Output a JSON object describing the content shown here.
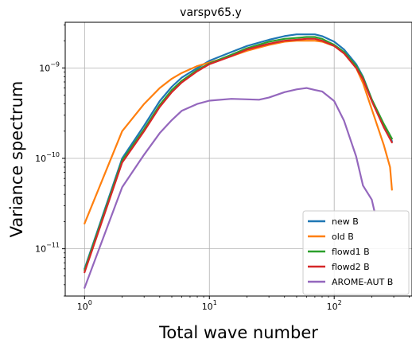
{
  "chart_data": {
    "type": "line",
    "title": "varspv65.y",
    "xlabel": "Total wave number",
    "ylabel": "Variance spectrum",
    "xscale": "log",
    "yscale": "log",
    "xlim": [
      0.7,
      420
    ],
    "ylim": [
      3e-12,
      3.2e-09
    ],
    "grid": true,
    "legend_position": "lower-right",
    "x_ticks": [
      {
        "base": "10",
        "exp": "0",
        "value": 1
      },
      {
        "base": "10",
        "exp": "1",
        "value": 10
      },
      {
        "base": "10",
        "exp": "2",
        "value": 100
      }
    ],
    "y_ticks": [
      {
        "base": "10",
        "exp": "−11",
        "value": 1e-11
      },
      {
        "base": "10",
        "exp": "−10",
        "value": 1e-10
      },
      {
        "base": "10",
        "exp": "−9",
        "value": 1e-09
      }
    ],
    "series": [
      {
        "name": "new B",
        "color": "#1f77b4",
        "x": [
          1,
          2,
          3,
          4,
          5,
          6,
          8,
          10,
          15,
          20,
          30,
          40,
          50,
          60,
          70,
          80,
          100,
          120,
          150,
          170,
          200,
          250,
          290
        ],
        "y": [
          6e-12,
          1e-10,
          2.3e-10,
          4.3e-10,
          6.2e-10,
          7.8e-10,
          1e-09,
          1.2e-09,
          1.5e-09,
          1.75e-09,
          2.05e-09,
          2.25e-09,
          2.35e-09,
          2.35e-09,
          2.35e-09,
          2.25e-09,
          1.95e-09,
          1.6e-09,
          1.1e-09,
          8e-10,
          4.5e-10,
          2.3e-10,
          1.55e-10
        ]
      },
      {
        "name": "old B",
        "color": "#ff7f0e",
        "x": [
          1,
          2,
          3,
          4,
          5,
          6,
          8,
          10,
          15,
          20,
          30,
          40,
          50,
          60,
          70,
          80,
          100,
          120,
          150,
          170,
          200,
          250,
          280,
          290
        ],
        "y": [
          1.9e-11,
          2e-10,
          4e-10,
          6e-10,
          7.6e-10,
          8.8e-10,
          1.05e-09,
          1.15e-09,
          1.35e-09,
          1.55e-09,
          1.8e-09,
          1.95e-09,
          2e-09,
          2e-09,
          2e-09,
          1.95e-09,
          1.75e-09,
          1.45e-09,
          1e-09,
          6.8e-10,
          3.5e-10,
          1.4e-10,
          8e-11,
          4.5e-11
        ]
      },
      {
        "name": "flowd1 B",
        "color": "#2ca02c",
        "x": [
          1,
          2,
          3,
          4,
          5,
          6,
          8,
          10,
          15,
          20,
          30,
          40,
          50,
          60,
          70,
          80,
          100,
          120,
          150,
          170,
          200,
          250,
          290
        ],
        "y": [
          5.8e-12,
          9.5e-11,
          2.1e-10,
          3.9e-10,
          5.7e-10,
          7.2e-10,
          9.5e-10,
          1.12e-09,
          1.4e-09,
          1.65e-09,
          1.95e-09,
          2.1e-09,
          2.15e-09,
          2.2e-09,
          2.2e-09,
          2.1e-09,
          1.8e-09,
          1.5e-09,
          1.05e-09,
          7.8e-10,
          4.5e-10,
          2.4e-10,
          1.65e-10
        ]
      },
      {
        "name": "flowd2 B",
        "color": "#d62728",
        "x": [
          1,
          2,
          3,
          4,
          5,
          6,
          8,
          10,
          15,
          20,
          30,
          40,
          50,
          60,
          70,
          80,
          100,
          120,
          150,
          170,
          200,
          250,
          290
        ],
        "y": [
          5.5e-12,
          9e-11,
          2e-10,
          3.7e-10,
          5.4e-10,
          6.9e-10,
          9.2e-10,
          1.1e-09,
          1.35e-09,
          1.6e-09,
          1.85e-09,
          2e-09,
          2.05e-09,
          2.1e-09,
          2.1e-09,
          2e-09,
          1.75e-09,
          1.45e-09,
          1e-09,
          7.5e-10,
          4.3e-10,
          2.2e-10,
          1.5e-10
        ]
      },
      {
        "name": "AROME-AUT B",
        "color": "#9467bd",
        "x": [
          1,
          2,
          3,
          4,
          5,
          6,
          8,
          10,
          15,
          20,
          25,
          30,
          40,
          50,
          60,
          70,
          80,
          100,
          120,
          150,
          170,
          200,
          210
        ],
        "y": [
          3.7e-12,
          4.8e-11,
          1.1e-10,
          1.9e-10,
          2.65e-10,
          3.35e-10,
          4e-10,
          4.35e-10,
          4.55e-10,
          4.5e-10,
          4.45e-10,
          4.7e-10,
          5.4e-10,
          5.8e-10,
          6e-10,
          5.7e-10,
          5.5e-10,
          4.3e-10,
          2.6e-10,
          1.05e-10,
          5e-11,
          3.5e-11,
          2.6e-11
        ]
      }
    ]
  }
}
